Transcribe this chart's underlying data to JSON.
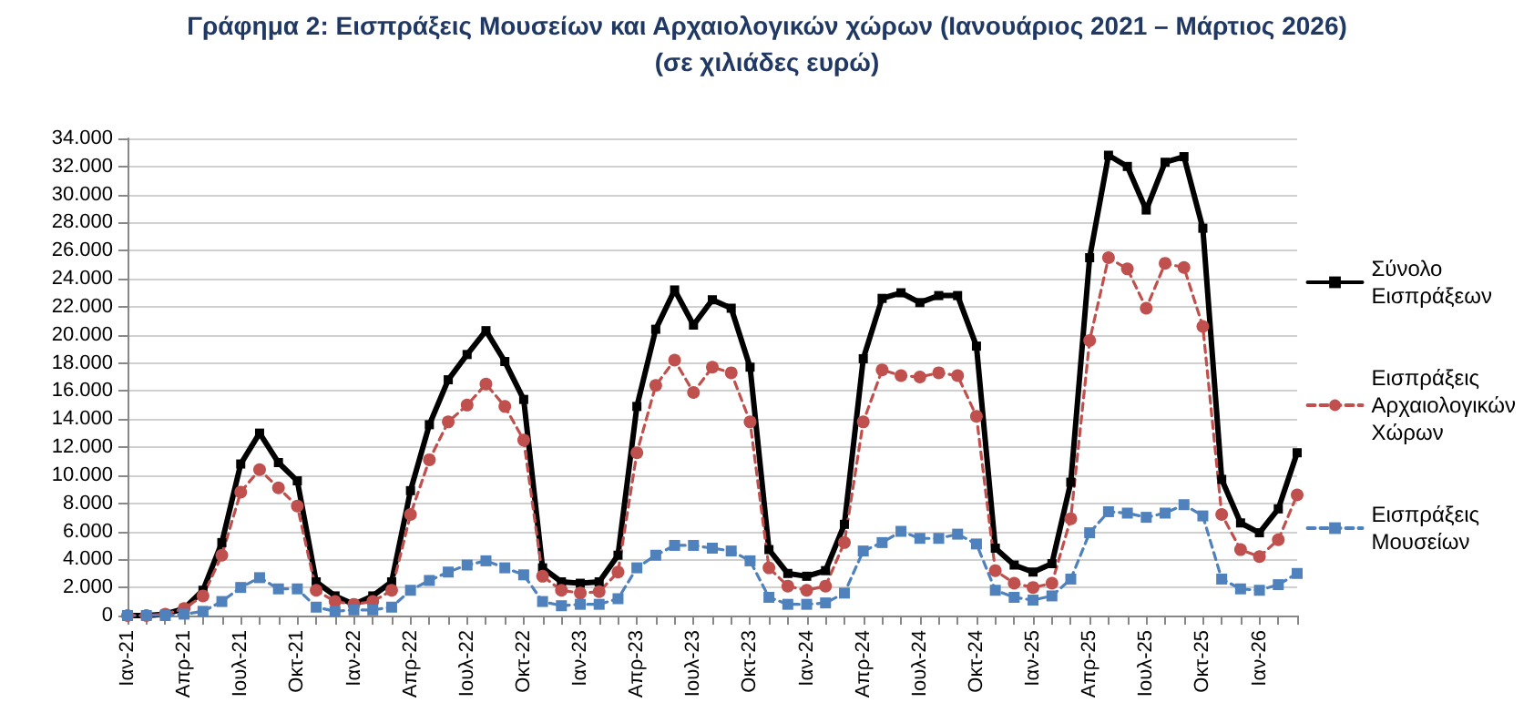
{
  "chart_data": {
    "type": "line",
    "title": "Γράφημα 2: Εισπράξεις Μουσείων και Αρχαιολογικών χώρων (Ιανουάριος 2021 – Μάρτιος 2026)",
    "subtitle": "(σε χιλιάδες ευρώ)",
    "categories": [
      "Ιαν-21",
      null,
      null,
      "Απρ-21",
      null,
      null,
      "Ιουλ-21",
      null,
      null,
      "Οκτ-21",
      null,
      null,
      "Ιαν-22",
      null,
      null,
      "Απρ-22",
      null,
      null,
      "Ιουλ-22",
      null,
      null,
      "Οκτ-22",
      null,
      null,
      "Ιαν-23",
      null,
      null,
      "Απρ-23",
      null,
      null,
      "Ιουλ-23",
      null,
      null,
      "Οκτ-23",
      null,
      null,
      "Ιαν-24",
      null,
      null,
      "Απρ-24",
      null,
      null,
      "Ιουλ-24",
      null,
      null,
      "Οκτ-24",
      null,
      null,
      "Ιαν-25",
      null,
      null,
      "Απρ-25",
      null,
      null,
      "Ιουλ-25",
      null,
      null,
      "Οκτ-25",
      null,
      null,
      "Ιαν-26",
      null,
      null
    ],
    "series": [
      {
        "name": "Σύνολο Εισπράξεων",
        "color": "#000000",
        "marker": "square",
        "line_style": "solid",
        "values": [
          0,
          0,
          100,
          500,
          1800,
          5200,
          10800,
          13000,
          10900,
          9600,
          2400,
          1400,
          800,
          1400,
          2400,
          8900,
          13600,
          16800,
          18600,
          20300,
          18100,
          15400,
          3400,
          2400,
          2300,
          2400,
          4300,
          14900,
          20400,
          23200,
          20700,
          22500,
          21900,
          17700,
          4700,
          3000,
          2800,
          3200,
          6500,
          18300,
          22600,
          23000,
          22300,
          22800,
          22800,
          19200,
          4800,
          3600,
          3100,
          3700,
          9500,
          25500,
          32800,
          32000,
          28900,
          32300,
          32700,
          27600,
          9700,
          6600,
          5900,
          7600,
          11600
        ]
      },
      {
        "name": "Εισπράξεις Αρχαιολογικών Χώρων",
        "color": "#c0504d",
        "marker": "circle",
        "line_style": "dashed",
        "values": [
          0,
          0,
          100,
          500,
          1400,
          4300,
          8800,
          10400,
          9100,
          7800,
          1800,
          1000,
          800,
          1000,
          1800,
          7200,
          11100,
          13800,
          15000,
          16500,
          14900,
          12500,
          2800,
          1800,
          1600,
          1700,
          3100,
          11600,
          16400,
          18200,
          15900,
          17700,
          17300,
          13800,
          3400,
          2100,
          1800,
          2100,
          5200,
          13800,
          17500,
          17100,
          17000,
          17300,
          17100,
          14200,
          3200,
          2300,
          2000,
          2300,
          6900,
          19600,
          25500,
          24700,
          21900,
          25100,
          24800,
          20600,
          7200,
          4700,
          4200,
          5400,
          8600
        ]
      },
      {
        "name": "Εισπράξεις Μουσείων",
        "color": "#4f81bd",
        "marker": "square",
        "line_style": "dashed",
        "values": [
          0,
          0,
          0,
          100,
          300,
          1000,
          2000,
          2700,
          1900,
          1900,
          600,
          300,
          400,
          400,
          600,
          1800,
          2500,
          3100,
          3600,
          3900,
          3400,
          2900,
          1000,
          700,
          800,
          800,
          1200,
          3400,
          4300,
          5000,
          5000,
          4800,
          4600,
          3900,
          1300,
          800,
          800,
          900,
          1600,
          4600,
          5200,
          6000,
          5500,
          5500,
          5800,
          5100,
          1800,
          1300,
          1100,
          1400,
          2600,
          5900,
          7400,
          7300,
          7000,
          7300,
          7900,
          7100,
          2600,
          1900,
          1800,
          2200,
          3000
        ]
      }
    ],
    "ylim": [
      0,
      34000
    ],
    "yticks": [
      0,
      {
        "value": 2000,
        "label": "2.000"
      },
      {
        "value": 4000,
        "label": "4.000"
      },
      {
        "value": 6000,
        "label": "6.000"
      },
      {
        "value": 8000,
        "label": "8.000"
      },
      {
        "value": 10000,
        "label": "10.000"
      },
      {
        "value": 12000,
        "label": "12.000"
      },
      {
        "value": 14000,
        "label": "14.000"
      },
      {
        "value": 16000,
        "label": "16.000"
      },
      {
        "value": 18000,
        "label": "18.000"
      },
      {
        "value": 20000,
        "label": "20.000"
      },
      {
        "value": 22000,
        "label": "22.000"
      },
      {
        "value": 24000,
        "label": "24.000"
      },
      {
        "value": 26000,
        "label": "26.000"
      },
      {
        "value": 28000,
        "label": "28.000"
      },
      {
        "value": 30000,
        "label": "30.000"
      },
      {
        "value": 32000,
        "label": "32.000"
      },
      {
        "value": 34000,
        "label": "34.000"
      }
    ],
    "grid": "y",
    "legend": "right"
  }
}
